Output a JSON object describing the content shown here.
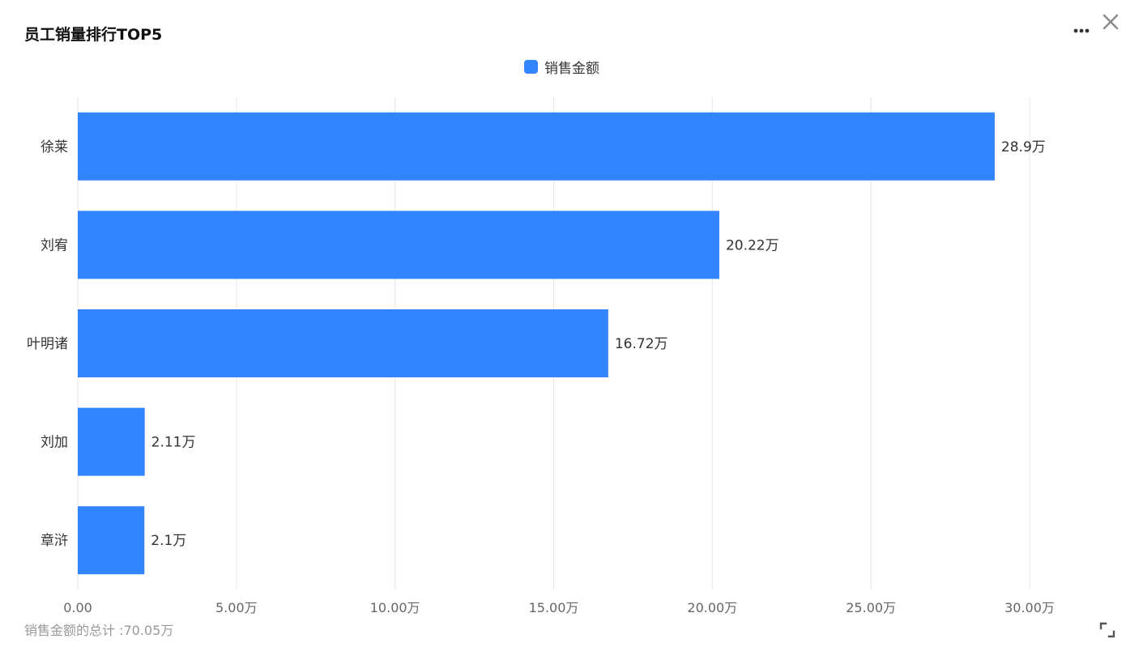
{
  "header": {
    "title": "员工销量排行TOP5"
  },
  "legend": {
    "label": "销售金额",
    "color": "#3385ff"
  },
  "footer": {
    "total_text": "销售金额的总计 :70.05万"
  },
  "icons": {
    "more": "more-dots-icon",
    "close": "close-icon",
    "expand": "expand-icon"
  },
  "chart_data": {
    "type": "bar",
    "orientation": "horizontal",
    "title": "员工销量排行TOP5",
    "categories": [
      "徐莱",
      "刘宥",
      "叶明诸",
      "刘加",
      "章浒"
    ],
    "series": [
      {
        "name": "销售金额",
        "values": [
          28.9,
          20.22,
          16.72,
          2.11,
          2.1
        ],
        "labels": [
          "28.9万",
          "20.22万",
          "16.72万",
          "2.11万",
          "2.1万"
        ],
        "color": "#3385ff"
      }
    ],
    "xlim": [
      0,
      30
    ],
    "xticks": [
      0,
      5,
      10,
      15,
      20,
      25,
      30
    ],
    "xtick_labels": [
      "0.00",
      "5.00万",
      "10.00万",
      "15.00万",
      "20.00万",
      "25.00万",
      "30.00万"
    ],
    "grid": true,
    "legend_position": "top-center",
    "xlabel": "",
    "ylabel": ""
  }
}
